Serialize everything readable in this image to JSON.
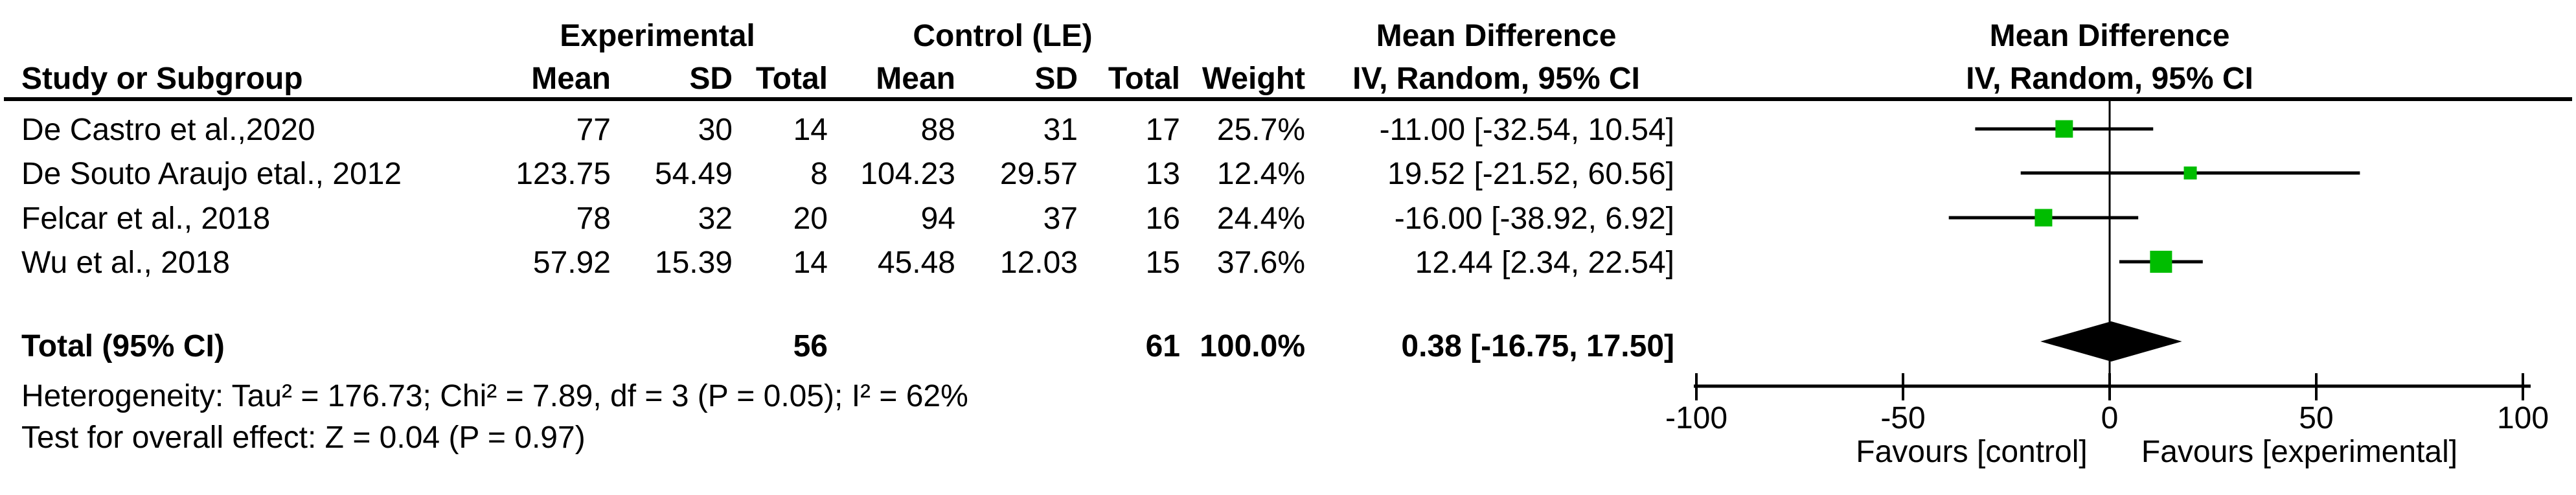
{
  "table": {
    "col_study_header": "Study or Subgroup",
    "group1_header": "Experimental",
    "group2_header": "Control (LE)",
    "effect_header_line1": "Mean Difference",
    "effect_header_line2": "IV, Random, 95% CI",
    "plot_header_line1": "Mean Difference",
    "plot_header_line2": "IV, Random, 95% CI",
    "col_headers": {
      "mean": "Mean",
      "sd": "SD",
      "total": "Total",
      "weight": "Weight"
    },
    "rows": [
      {
        "study": "De Castro et al.,2020",
        "mean1": "77",
        "sd1": "30",
        "total1": "14",
        "mean2": "88",
        "sd2": "31",
        "total2": "17",
        "weight": "25.7%",
        "ci": "-11.00 [-32.54, 10.54]"
      },
      {
        "study": "De Souto Araujo etal., 2012",
        "mean1": "123.75",
        "sd1": "54.49",
        "total1": "8",
        "mean2": "104.23",
        "sd2": "29.57",
        "total2": "13",
        "weight": "12.4%",
        "ci": "19.52 [-21.52, 60.56]"
      },
      {
        "study": "Felcar et al., 2018",
        "mean1": "78",
        "sd1": "32",
        "total1": "20",
        "mean2": "94",
        "sd2": "37",
        "total2": "16",
        "weight": "24.4%",
        "ci": "-16.00 [-38.92, 6.92]"
      },
      {
        "study": "Wu et al., 2018",
        "mean1": "57.92",
        "sd1": "15.39",
        "total1": "14",
        "mean2": "45.48",
        "sd2": "12.03",
        "total2": "15",
        "weight": "37.6%",
        "ci": "12.44 [2.34, 22.54]"
      }
    ],
    "total_row": {
      "label": "Total (95% CI)",
      "total1": "56",
      "total2": "61",
      "weight": "100.0%",
      "ci": "0.38 [-16.75, 17.50]"
    },
    "footnotes": {
      "heterogeneity": "Heterogeneity: Tau² = 176.73; Chi² = 7.89, df = 3 (P = 0.05); I² = 62%",
      "overall_effect": "Test for overall effect: Z = 0.04 (P = 0.97)"
    }
  },
  "chart_data": {
    "type": "forest",
    "effect_measure": "Mean Difference, IV, Random, 95% CI",
    "studies": [
      {
        "name": "De Castro et al.,2020",
        "md": -11.0,
        "lo": -32.54,
        "hi": 10.54,
        "weight": 25.7
      },
      {
        "name": "De Souto Araujo etal., 2012",
        "md": 19.52,
        "lo": -21.52,
        "hi": 60.56,
        "weight": 12.4
      },
      {
        "name": "Felcar et al., 2018",
        "md": -16.0,
        "lo": -38.92,
        "hi": 6.92,
        "weight": 24.4
      },
      {
        "name": "Wu et al., 2018",
        "md": 12.44,
        "lo": 2.34,
        "hi": 22.54,
        "weight": 37.6
      }
    ],
    "total": {
      "md": 0.38,
      "lo": -16.75,
      "hi": 17.5,
      "weight": 100.0
    },
    "axis": {
      "min": -100,
      "max": 100,
      "ticks": [
        -100,
        -50,
        0,
        50,
        100
      ],
      "tick_labels": [
        "-100",
        "-50",
        "0",
        "50",
        "100"
      ],
      "label_left": "Favours [control]",
      "label_right": "Favours [experimental]"
    },
    "colors": {
      "study_marker": "#00bd00",
      "summary_diamond": "#000000",
      "line": "#000000"
    }
  }
}
